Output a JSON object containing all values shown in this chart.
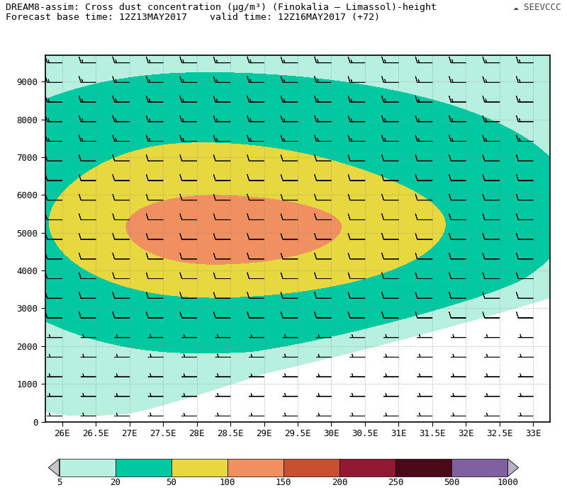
{
  "title_line1": "DREAM8-assim: Cross dust concentration (μg/m³) (Finokalia – Limassol)-height",
  "title_line2": "Forecast base time: 12Z13MAY2017    valid time: 12Z16MAY2017 (+72)",
  "xlabel_ticks": [
    "26E",
    "26.5E",
    "27E",
    "27.5E",
    "28E",
    "28.5E",
    "29E",
    "29.5E",
    "30E",
    "30.5E",
    "31E",
    "31.5E",
    "32E",
    "32.5E",
    "33E"
  ],
  "xlabel_vals": [
    26.0,
    26.5,
    27.0,
    27.5,
    28.0,
    28.5,
    29.0,
    29.5,
    30.0,
    30.5,
    31.0,
    31.5,
    32.0,
    32.5,
    33.0
  ],
  "ylabel_ticks": [
    0,
    1000,
    2000,
    3000,
    4000,
    5000,
    6000,
    7000,
    8000,
    9000
  ],
  "xlim": [
    25.75,
    33.25
  ],
  "ylim": [
    0,
    9700
  ],
  "colorbar_levels": [
    5,
    20,
    50,
    100,
    150,
    200,
    250,
    500,
    1000
  ],
  "colorbar_colors": [
    "#b8f0e0",
    "#00c8a0",
    "#e8d840",
    "#f09060",
    "#c85030",
    "#901830",
    "#4a0818",
    "#8060a0"
  ],
  "bg_color": "#ffffff",
  "plot_bg": "#ffffff",
  "title_fontsize": 9.5,
  "tick_fontsize": 9,
  "border_color": "#000000"
}
